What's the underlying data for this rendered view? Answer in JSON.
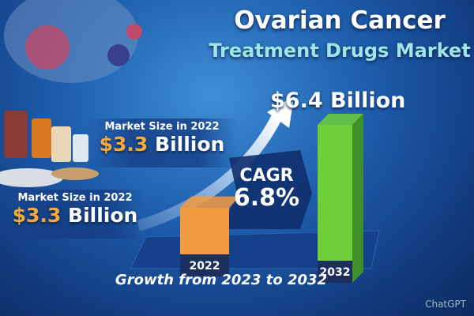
{
  "header": {
    "title": "Ovarian Cancer",
    "subtitle": "Treatment Drugs Market"
  },
  "callouts": [
    {
      "label": "Market Size in 2022",
      "value": "$3.3",
      "unit": " Billion"
    },
    {
      "label": "Market Size in 2022",
      "value": "$3.3",
      "unit": " Billion"
    }
  ],
  "top_value": "$6.4 Billion",
  "cagr": {
    "label": "CAGR",
    "value": "6.8%"
  },
  "footer": "Growth from 2023 to 2032",
  "watermark": "ChatGPT",
  "colors": {
    "bar_2022": "#f29a3f",
    "bar_2032": "#6fcf3a",
    "background": "#1f5fae",
    "accent_text": "#9fe6e6"
  },
  "chart_data": {
    "type": "bar",
    "categories": [
      "2022",
      "2032"
    ],
    "values": [
      3.3,
      6.4
    ],
    "unit": "Billion USD",
    "annotations": [
      "$6.4 Billion",
      "CAGR 6.8%"
    ]
  }
}
